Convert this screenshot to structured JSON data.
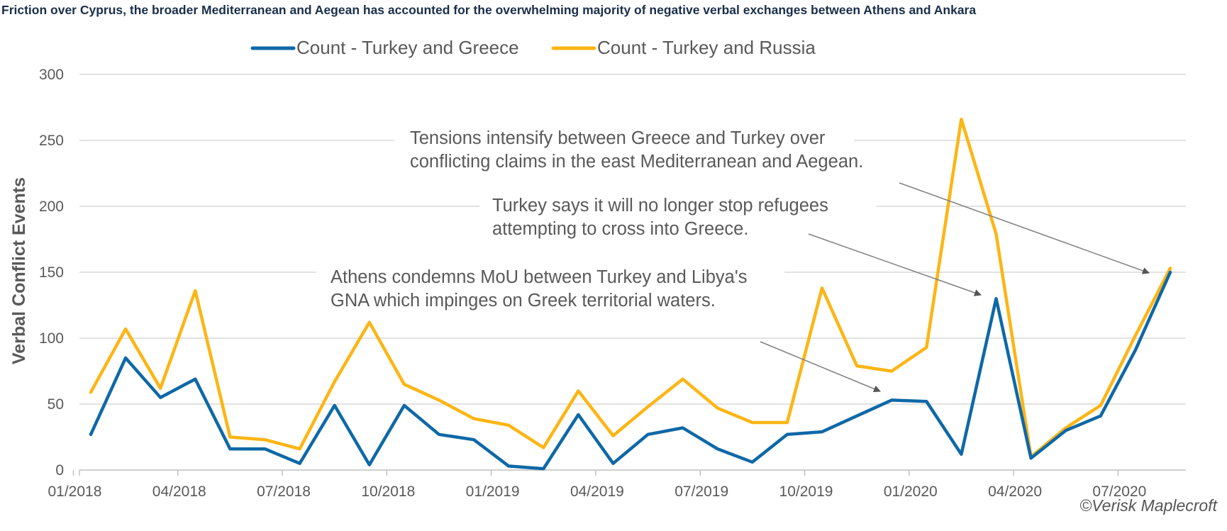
{
  "page": {
    "title": "Friction over Cyprus, the broader Mediterranean and Aegean has accounted for the overwhelming majority of negative verbal exchanges between Athens and Ankara",
    "credit": "©Verisk Maplecroft"
  },
  "chart_data": {
    "type": "line",
    "title": "",
    "xlabel": "",
    "ylabel": "Verbal Conflict Events",
    "ylim": [
      0,
      300
    ],
    "yticks": [
      0,
      50,
      100,
      150,
      200,
      250,
      300
    ],
    "grid": true,
    "legend_position": "top",
    "x": [
      "01/2018",
      "02/2018",
      "03/2018",
      "04/2018",
      "05/2018",
      "06/2018",
      "07/2018",
      "08/2018",
      "09/2018",
      "10/2018",
      "11/2018",
      "12/2018",
      "01/2019",
      "02/2019",
      "03/2019",
      "04/2019",
      "05/2019",
      "06/2019",
      "07/2019",
      "08/2019",
      "09/2019",
      "10/2019",
      "11/2019",
      "12/2019",
      "01/2020",
      "02/2020",
      "03/2020",
      "04/2020",
      "05/2020",
      "06/2020",
      "07/2020",
      "08/2020"
    ],
    "xtick_labels": [
      "01/2018",
      "04/2018",
      "07/2018",
      "10/2018",
      "01/2019",
      "04/2019",
      "07/2019",
      "10/2019",
      "01/2020",
      "04/2020",
      "07/2020"
    ],
    "series": [
      {
        "name": "Count - Turkey and Greece",
        "color": "#0e68a7",
        "values": [
          27,
          85,
          55,
          69,
          16,
          16,
          5,
          49,
          4,
          49,
          27,
          23,
          3,
          1,
          42,
          5,
          27,
          32,
          16,
          6,
          27,
          29,
          41,
          53,
          52,
          12,
          130,
          9,
          30,
          41,
          91,
          150
        ]
      },
      {
        "name": "Count - Turkey and Russia",
        "color": "#fdb515",
        "values": [
          59,
          107,
          62,
          136,
          25,
          23,
          16,
          67,
          112,
          65,
          53,
          39,
          34,
          17,
          60,
          26,
          48,
          69,
          47,
          36,
          36,
          138,
          79,
          75,
          93,
          266,
          179,
          10,
          32,
          49,
          102,
          153
        ]
      }
    ],
    "annotations": [
      {
        "text_lines": [
          "Tensions intensify between Greece and Turkey over",
          "conflicting claims in the east Mediterranean and Aegean."
        ],
        "target": "08/2020"
      },
      {
        "text_lines": [
          "Turkey says it will no longer stop refugees",
          "attempting to cross into Greece."
        ],
        "target": "03/2020"
      },
      {
        "text_lines": [
          "Athens condemns MoU between Turkey and Libya's",
          "GNA which impinges on Greek territorial waters."
        ],
        "target": "12/2019"
      }
    ]
  }
}
